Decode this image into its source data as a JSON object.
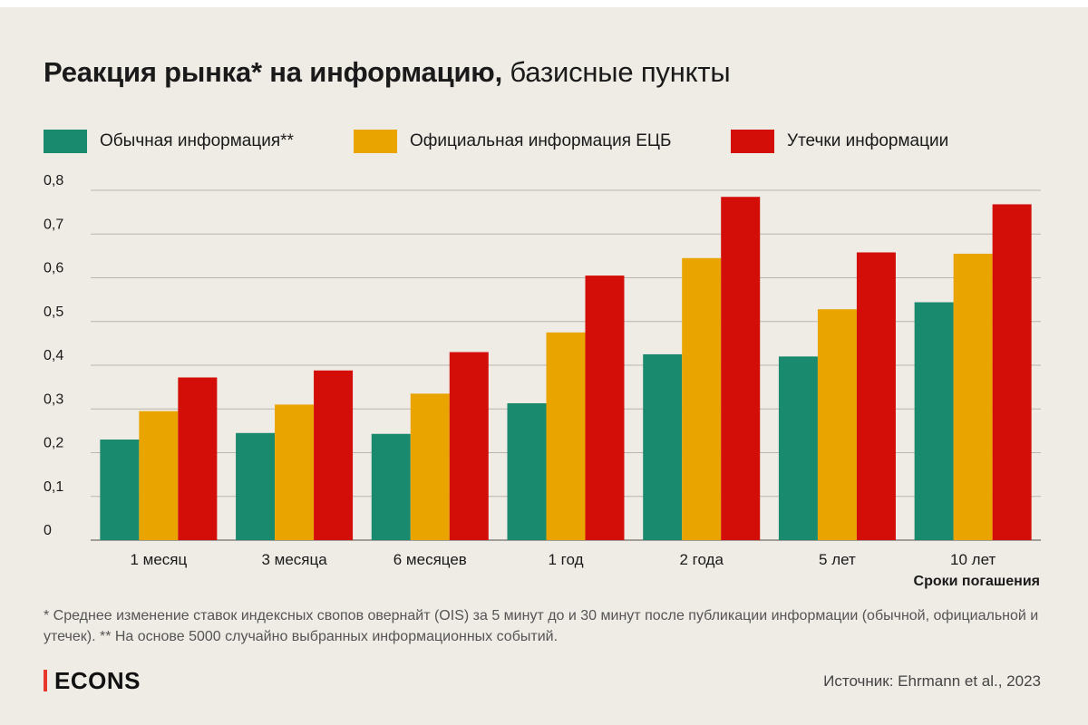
{
  "title": {
    "bold": "Реакция рынка* на информацию,",
    "regular": " базисные пункты"
  },
  "chart_data": {
    "type": "bar",
    "title": "Реакция рынка* на информацию, базисные пункты",
    "categories": [
      "1 месяц",
      "3 месяца",
      "6 месяцев",
      "1 год",
      "2 года",
      "5 лет",
      "10 лет"
    ],
    "series": [
      {
        "name": "Обычная информация**",
        "color": "#1a8a6e",
        "values": [
          0.23,
          0.245,
          0.243,
          0.313,
          0.425,
          0.42,
          0.544
        ]
      },
      {
        "name": "Официальная информация ЕЦБ",
        "color": "#e9a400",
        "values": [
          0.295,
          0.31,
          0.335,
          0.475,
          0.645,
          0.528,
          0.655
        ]
      },
      {
        "name": "Утечки информации",
        "color": "#d30d08",
        "values": [
          0.372,
          0.388,
          0.43,
          0.605,
          0.785,
          0.658,
          0.768
        ]
      }
    ],
    "ylim": [
      0,
      0.8
    ],
    "yticks": [
      {
        "value": 0,
        "label": "0"
      },
      {
        "value": 0.1,
        "label": "0,1"
      },
      {
        "value": 0.2,
        "label": "0,2"
      },
      {
        "value": 0.3,
        "label": "0,3"
      },
      {
        "value": 0.4,
        "label": "0,4"
      },
      {
        "value": 0.5,
        "label": "0,5"
      },
      {
        "value": 0.6,
        "label": "0,6"
      },
      {
        "value": 0.7,
        "label": "0,7"
      },
      {
        "value": 0.8,
        "label": "0,8"
      }
    ],
    "xlabel": "Сроки погашения",
    "ylabel": "",
    "grid": true,
    "legend": "top-left"
  },
  "footnote": "* Среднее изменение ставок индексных свопов овернайт (OIS) за 5 минут до и 30 минут после публикации информации (обычной, официальной и утечек). ** На основе 5000 случайно выбранных информационных событий.",
  "brand": "ECONS",
  "source": "Источник: Ehrmann et al., 2023"
}
